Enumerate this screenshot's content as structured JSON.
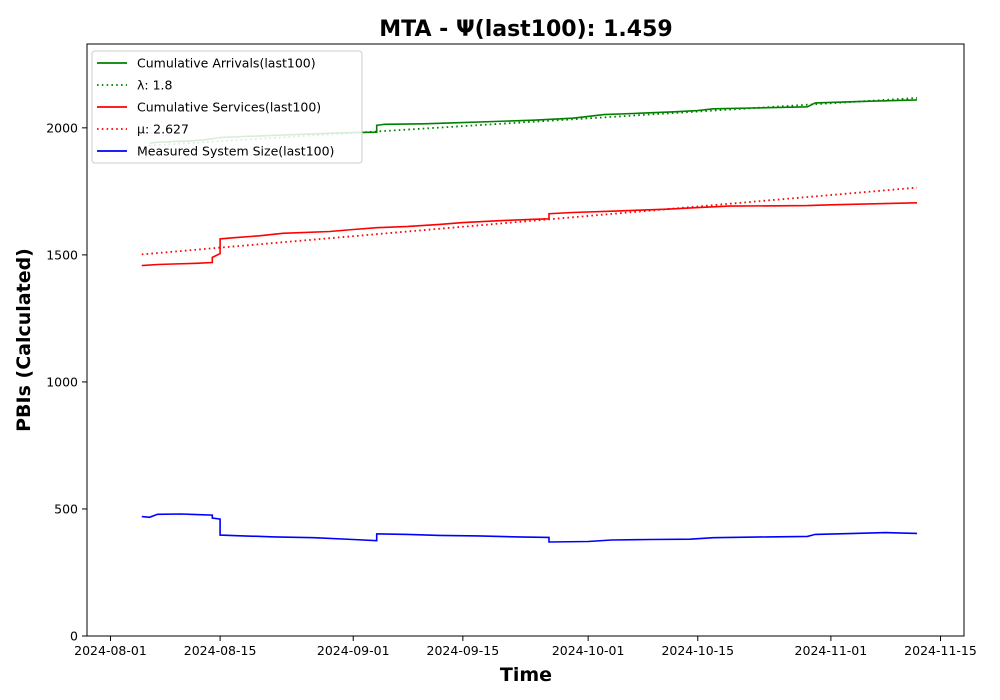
{
  "chart_data": {
    "type": "line",
    "title": "MTA -  Ψ(last100): 1.459",
    "xlabel": "Time",
    "ylabel": "PBIs (Calculated)",
    "xlim": [
      "2024-07-29",
      "2024-11-18"
    ],
    "ylim": [
      0,
      2330
    ],
    "x_ticks": [
      "2024-08-01",
      "2024-08-15",
      "2024-09-01",
      "2024-09-15",
      "2024-10-01",
      "2024-10-15",
      "2024-11-01",
      "2024-11-15"
    ],
    "y_ticks": [
      0,
      500,
      1000,
      1500,
      2000
    ],
    "grid": false,
    "legend_position": "top-left",
    "series": [
      {
        "name": "Cumulative Arrivals(last100)",
        "color": "#008000",
        "style": "solid",
        "points": [
          [
            "2024-08-06",
            1940
          ],
          [
            "2024-08-07",
            1943
          ],
          [
            "2024-08-09",
            1946
          ],
          [
            "2024-08-11",
            1948
          ],
          [
            "2024-08-13",
            1953
          ],
          [
            "2024-08-15",
            1962
          ],
          [
            "2024-08-18",
            1966
          ],
          [
            "2024-08-21",
            1969
          ],
          [
            "2024-08-24",
            1973
          ],
          [
            "2024-08-27",
            1976
          ],
          [
            "2024-08-30",
            1980
          ],
          [
            "2024-09-02",
            1982
          ],
          [
            "2024-09-04",
            1983
          ],
          [
            "2024-09-04",
            2010
          ],
          [
            "2024-09-05",
            2014
          ],
          [
            "2024-09-10",
            2016
          ],
          [
            "2024-09-14",
            2020
          ],
          [
            "2024-09-19",
            2025
          ],
          [
            "2024-09-24",
            2030
          ],
          [
            "2024-09-29",
            2038
          ],
          [
            "2024-10-01",
            2045
          ],
          [
            "2024-10-03",
            2052
          ],
          [
            "2024-10-08",
            2058
          ],
          [
            "2024-10-12",
            2063
          ],
          [
            "2024-10-15",
            2068
          ],
          [
            "2024-10-17",
            2075
          ],
          [
            "2024-10-22",
            2078
          ],
          [
            "2024-10-29",
            2083
          ],
          [
            "2024-10-30",
            2098
          ],
          [
            "2024-11-03",
            2102
          ],
          [
            "2024-11-06",
            2105
          ],
          [
            "2024-11-12",
            2110
          ]
        ]
      },
      {
        "name": "λ: 1.8",
        "color": "#008000",
        "style": "dotted",
        "points": [
          [
            "2024-08-06",
            1930
          ],
          [
            "2024-11-12",
            2118
          ]
        ]
      },
      {
        "name": "Cumulative Services(last100)",
        "color": "#ff0000",
        "style": "solid",
        "points": [
          [
            "2024-08-05",
            1458
          ],
          [
            "2024-08-07",
            1462
          ],
          [
            "2024-08-09",
            1464
          ],
          [
            "2024-08-12",
            1467
          ],
          [
            "2024-08-14",
            1470
          ],
          [
            "2024-08-14",
            1490
          ],
          [
            "2024-08-15",
            1505
          ],
          [
            "2024-08-15",
            1563
          ],
          [
            "2024-08-17",
            1568
          ],
          [
            "2024-08-20",
            1575
          ],
          [
            "2024-08-23",
            1585
          ],
          [
            "2024-08-29",
            1592
          ],
          [
            "2024-09-01",
            1600
          ],
          [
            "2024-09-04",
            1607
          ],
          [
            "2024-09-08",
            1612
          ],
          [
            "2024-09-12",
            1620
          ],
          [
            "2024-09-15",
            1627
          ],
          [
            "2024-09-20",
            1635
          ],
          [
            "2024-09-24",
            1640
          ],
          [
            "2024-09-26",
            1642
          ],
          [
            "2024-09-26",
            1662
          ],
          [
            "2024-09-29",
            1667
          ],
          [
            "2024-10-04",
            1672
          ],
          [
            "2024-10-11",
            1680
          ],
          [
            "2024-10-15",
            1686
          ],
          [
            "2024-10-19",
            1692
          ],
          [
            "2024-10-29",
            1694
          ],
          [
            "2024-11-01",
            1697
          ],
          [
            "2024-11-12",
            1705
          ]
        ]
      },
      {
        "name": "μ: 2.627",
        "color": "#ff0000",
        "style": "dotted",
        "points": [
          [
            "2024-08-05",
            1502
          ],
          [
            "2024-11-12",
            1765
          ]
        ]
      },
      {
        "name": "Measured System Size(last100)",
        "color": "#0000ff",
        "style": "solid",
        "points": [
          [
            "2024-08-05",
            470
          ],
          [
            "2024-08-06",
            467
          ],
          [
            "2024-08-07",
            479
          ],
          [
            "2024-08-10",
            480
          ],
          [
            "2024-08-12",
            478
          ],
          [
            "2024-08-14",
            476
          ],
          [
            "2024-08-14",
            464
          ],
          [
            "2024-08-15",
            460
          ],
          [
            "2024-08-15",
            397
          ],
          [
            "2024-08-18",
            394
          ],
          [
            "2024-08-22",
            390
          ],
          [
            "2024-08-27",
            387
          ],
          [
            "2024-09-01",
            380
          ],
          [
            "2024-09-04",
            375
          ],
          [
            "2024-09-04",
            402
          ],
          [
            "2024-09-08",
            400
          ],
          [
            "2024-09-12",
            396
          ],
          [
            "2024-09-17",
            394
          ],
          [
            "2024-09-22",
            390
          ],
          [
            "2024-09-26",
            388
          ],
          [
            "2024-09-26",
            370
          ],
          [
            "2024-10-01",
            372
          ],
          [
            "2024-10-04",
            378
          ],
          [
            "2024-10-09",
            380
          ],
          [
            "2024-10-14",
            381
          ],
          [
            "2024-10-17",
            387
          ],
          [
            "2024-10-24",
            390
          ],
          [
            "2024-10-29",
            392
          ],
          [
            "2024-10-30",
            400
          ],
          [
            "2024-11-04",
            404
          ],
          [
            "2024-11-08",
            407
          ],
          [
            "2024-11-12",
            404
          ]
        ]
      }
    ]
  }
}
